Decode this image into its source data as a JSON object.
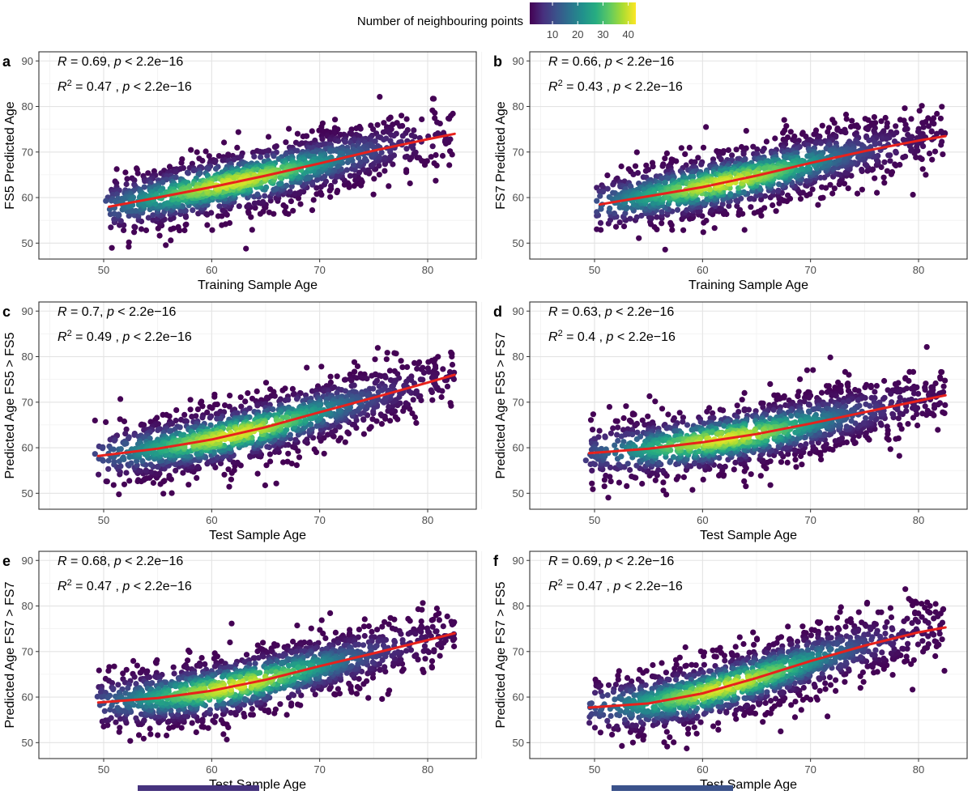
{
  "colors": {
    "panel_border": "#333333",
    "grid_major": "#e3e3e3",
    "grid_minor": "#f1f1f1",
    "fit_line": "#e8211c",
    "viridis": [
      "#440154",
      "#472f7d",
      "#3b528b",
      "#2c728e",
      "#21918c",
      "#27ad81",
      "#5ec962",
      "#aadc32",
      "#fde725"
    ]
  },
  "legend": {
    "title": "Number of neighbouring points",
    "ticks": [
      "10",
      "20",
      "30",
      "40"
    ],
    "tick_values": [
      10,
      20,
      30,
      40
    ],
    "range": [
      1,
      43
    ]
  },
  "chart_data": [
    {
      "type": "scatter",
      "panel_label": "a",
      "ylabel": "FS5 Predicted Age",
      "xlabel": "Training Sample Age",
      "r_text": "R = 0.69, p < 2.2e−16",
      "r2_text": "R2 = 0.47 , p < 2.2e−16",
      "R": 0.69,
      "R2": 0.47,
      "xlim": [
        44,
        84.5
      ],
      "ylim": [
        46.5,
        92
      ],
      "xticks": [
        50,
        60,
        70,
        80
      ],
      "yticks": [
        50,
        60,
        70,
        80,
        90
      ],
      "fit_line": [
        [
          50.5,
          58.0
        ],
        [
          55,
          60.0
        ],
        [
          60,
          62.3
        ],
        [
          65,
          64.8
        ],
        [
          70,
          67.5
        ],
        [
          75,
          70.3
        ],
        [
          80,
          72.8
        ],
        [
          82.5,
          74.0
        ]
      ]
    },
    {
      "type": "scatter",
      "panel_label": "b",
      "ylabel": "FS7 Predicted Age",
      "xlabel": "Training Sample Age",
      "r_text": "R = 0.66, p < 2.2e−16",
      "r2_text": "R2 = 0.43 , p < 2.2e−16",
      "R": 0.66,
      "R2": 0.43,
      "xlim": [
        44,
        84.5
      ],
      "ylim": [
        46.5,
        92
      ],
      "xticks": [
        50,
        60,
        70,
        80
      ],
      "yticks": [
        50,
        60,
        70,
        80,
        90
      ],
      "fit_line": [
        [
          50.5,
          58.5
        ],
        [
          55,
          60.3
        ],
        [
          60,
          62.3
        ],
        [
          65,
          64.8
        ],
        [
          70,
          67.6
        ],
        [
          75,
          70.2
        ],
        [
          80,
          72.5
        ],
        [
          82.5,
          73.5
        ]
      ]
    },
    {
      "type": "scatter",
      "panel_label": "c",
      "ylabel": "Predicted Age FS5 > FS5",
      "xlabel": "Test Sample Age",
      "r_text": "R = 0.7, p < 2.2e−16",
      "r2_text": "R2 = 0.49 , p < 2.2e−16",
      "R": 0.7,
      "R2": 0.49,
      "xlim": [
        44,
        84.5
      ],
      "ylim": [
        46.5,
        92
      ],
      "xticks": [
        50,
        60,
        70,
        80
      ],
      "yticks": [
        50,
        60,
        70,
        80,
        90
      ],
      "fit_line": [
        [
          49.5,
          58.2
        ],
        [
          55,
          59.8
        ],
        [
          60,
          61.8
        ],
        [
          65,
          64.5
        ],
        [
          70,
          67.8
        ],
        [
          75,
          71.0
        ],
        [
          80,
          74.3
        ],
        [
          82.5,
          76.0
        ]
      ]
    },
    {
      "type": "scatter",
      "panel_label": "d",
      "ylabel": "Predicted Age FS5 > FS7",
      "xlabel": "Test Sample Age",
      "r_text": "R = 0.63, p < 2.2e−16",
      "r2_text": "R2 = 0.4 , p < 2.2e−16",
      "R": 0.63,
      "R2": 0.4,
      "xlim": [
        44,
        84.5
      ],
      "ylim": [
        46.5,
        92
      ],
      "xticks": [
        50,
        60,
        70,
        80
      ],
      "yticks": [
        50,
        60,
        70,
        80,
        90
      ],
      "fit_line": [
        [
          49.5,
          58.8
        ],
        [
          55,
          59.8
        ],
        [
          60,
          61.2
        ],
        [
          65,
          63.0
        ],
        [
          70,
          65.3
        ],
        [
          75,
          67.8
        ],
        [
          80,
          70.3
        ],
        [
          82.5,
          71.5
        ]
      ]
    },
    {
      "type": "scatter",
      "panel_label": "e",
      "ylabel": "Predicted Age FS7 > FS7",
      "xlabel": "Test Sample Age",
      "r_text": "R = 0.68, p < 2.2e−16",
      "r2_text": "R2 = 0.47 , p < 2.2e−16",
      "R": 0.68,
      "R2": 0.47,
      "xlim": [
        44,
        84.5
      ],
      "ylim": [
        46.5,
        92
      ],
      "xticks": [
        50,
        60,
        70,
        80
      ],
      "yticks": [
        50,
        60,
        70,
        80,
        90
      ],
      "fit_line": [
        [
          49.5,
          58.8
        ],
        [
          55,
          59.8
        ],
        [
          60,
          61.4
        ],
        [
          65,
          63.8
        ],
        [
          70,
          66.8
        ],
        [
          75,
          69.6
        ],
        [
          80,
          72.5
        ],
        [
          82.5,
          74.0
        ]
      ]
    },
    {
      "type": "scatter",
      "panel_label": "f",
      "ylabel": "Predicted Age FS7 > FS5",
      "xlabel": "Test Sample Age",
      "r_text": "R = 0.69, p < 2.2e−16",
      "r2_text": "R2 = 0.47 , p < 2.2e−16",
      "R": 0.69,
      "R2": 0.47,
      "xlim": [
        44,
        84.5
      ],
      "ylim": [
        46.5,
        92
      ],
      "xticks": [
        50,
        60,
        70,
        80
      ],
      "yticks": [
        50,
        60,
        70,
        80,
        90
      ],
      "fit_line": [
        [
          49.5,
          57.7
        ],
        [
          55,
          58.6
        ],
        [
          60,
          60.8
        ],
        [
          65,
          64.2
        ],
        [
          70,
          67.9
        ],
        [
          75,
          71.3
        ],
        [
          80,
          74.2
        ],
        [
          82.5,
          75.3
        ]
      ]
    }
  ]
}
